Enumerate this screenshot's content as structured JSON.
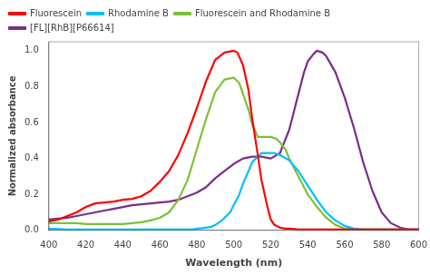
{
  "chart_data": {
    "type": "line",
    "title": "",
    "xlabel": "Wavelength (nm)",
    "ylabel": "Normalized absorbance",
    "xlim": [
      400,
      600
    ],
    "ylim": [
      0,
      1.05
    ],
    "xticks": [
      400,
      420,
      440,
      460,
      480,
      500,
      520,
      540,
      560,
      580,
      600
    ],
    "yticks": [
      {
        "value": 0,
        "label": "0.0"
      },
      0.2,
      0.4,
      0.6,
      0.8,
      {
        "value": 1.0,
        "label": "1.0"
      }
    ],
    "grid": false,
    "legend": "upper left",
    "series": [
      {
        "name": "Fluorescein",
        "color": "#ff0000",
        "x": [
          400,
          405,
          410,
          415,
          420,
          425,
          430,
          435,
          440,
          445,
          450,
          455,
          460,
          465,
          470,
          475,
          480,
          485,
          490,
          495,
          500,
          502,
          505,
          508,
          510,
          513,
          515,
          518,
          520,
          522,
          525,
          528,
          530,
          535,
          540,
          545,
          550,
          560,
          570,
          580,
          600
        ],
        "values": [
          0.05,
          0.06,
          0.08,
          0.1,
          0.13,
          0.15,
          0.155,
          0.16,
          0.17,
          0.175,
          0.19,
          0.22,
          0.27,
          0.33,
          0.42,
          0.54,
          0.68,
          0.83,
          0.95,
          0.99,
          1.0,
          0.99,
          0.92,
          0.78,
          0.62,
          0.42,
          0.28,
          0.14,
          0.06,
          0.03,
          0.015,
          0.01,
          0.01,
          0.005,
          0.005,
          0.005,
          0.005,
          0.005,
          0.005,
          0.005,
          0.005
        ]
      },
      {
        "name": "Rhodamine B",
        "color": "#00bfff",
        "x": [
          400,
          410,
          420,
          430,
          440,
          450,
          460,
          465,
          470,
          475,
          478,
          480,
          483,
          485,
          488,
          490,
          493,
          495,
          498,
          500,
          503,
          505,
          508,
          510,
          513,
          515,
          518,
          520,
          522,
          525,
          530,
          535,
          540,
          545,
          550,
          555,
          560,
          565,
          570,
          575,
          580,
          590,
          600
        ],
        "values": [
          0.01,
          0.005,
          0.005,
          0.005,
          0.005,
          0.005,
          0.005,
          0.005,
          0.005,
          0.005,
          0.005,
          0.01,
          0.012,
          0.015,
          0.02,
          0.03,
          0.05,
          0.07,
          0.1,
          0.14,
          0.2,
          0.26,
          0.33,
          0.38,
          0.41,
          0.43,
          0.43,
          0.43,
          0.43,
          0.42,
          0.39,
          0.33,
          0.25,
          0.17,
          0.1,
          0.055,
          0.025,
          0.01,
          0.005,
          0.005,
          0.005,
          0.005,
          0.005
        ]
      },
      {
        "name": "Fluorescein and Rhodamine B",
        "color": "#7dc03a",
        "x": [
          400,
          405,
          410,
          415,
          420,
          425,
          430,
          435,
          440,
          445,
          450,
          455,
          460,
          465,
          470,
          475,
          480,
          485,
          490,
          495,
          500,
          503,
          505,
          508,
          510,
          513,
          515,
          518,
          520,
          523,
          525,
          528,
          530,
          535,
          540,
          545,
          550,
          555,
          560,
          570,
          580,
          590,
          600
        ],
        "values": [
          0.04,
          0.04,
          0.04,
          0.04,
          0.035,
          0.035,
          0.035,
          0.035,
          0.035,
          0.04,
          0.045,
          0.055,
          0.07,
          0.1,
          0.17,
          0.28,
          0.45,
          0.62,
          0.77,
          0.84,
          0.85,
          0.82,
          0.76,
          0.67,
          0.59,
          0.52,
          0.52,
          0.52,
          0.52,
          0.51,
          0.49,
          0.45,
          0.4,
          0.3,
          0.2,
          0.13,
          0.07,
          0.03,
          0.01,
          0.005,
          0.005,
          0.005,
          0.005
        ]
      },
      {
        "name": "[FL][RhB][P66614]",
        "color": "#7b2d8b",
        "x": [
          400,
          405,
          410,
          415,
          420,
          425,
          430,
          435,
          440,
          445,
          450,
          455,
          460,
          465,
          470,
          475,
          480,
          485,
          490,
          495,
          500,
          505,
          510,
          515,
          520,
          525,
          530,
          535,
          538,
          540,
          543,
          545,
          548,
          550,
          555,
          560,
          565,
          570,
          575,
          580,
          585,
          590,
          595,
          600
        ],
        "values": [
          0.06,
          0.065,
          0.07,
          0.08,
          0.09,
          0.1,
          0.11,
          0.12,
          0.13,
          0.14,
          0.145,
          0.15,
          0.155,
          0.16,
          0.17,
          0.19,
          0.21,
          0.24,
          0.29,
          0.33,
          0.37,
          0.4,
          0.41,
          0.41,
          0.4,
          0.43,
          0.56,
          0.76,
          0.88,
          0.94,
          0.98,
          1.0,
          0.99,
          0.97,
          0.88,
          0.74,
          0.57,
          0.38,
          0.22,
          0.1,
          0.04,
          0.015,
          0.005,
          0.005
        ]
      }
    ]
  }
}
